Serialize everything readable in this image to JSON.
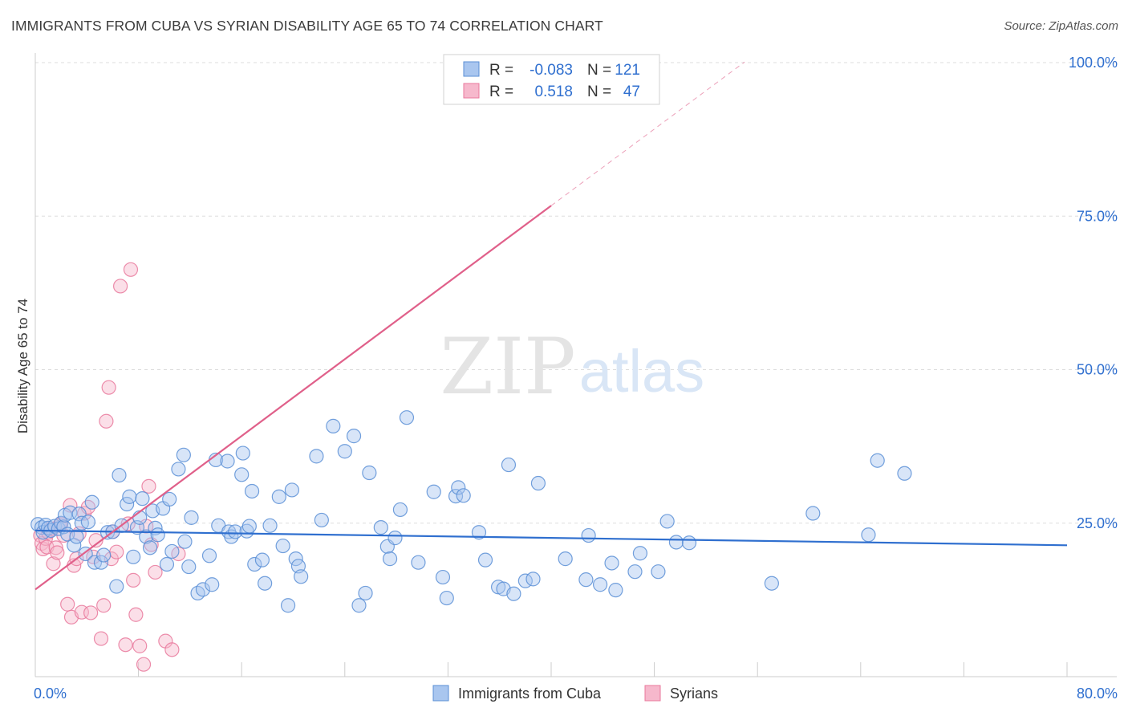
{
  "header": {
    "title": "IMMIGRANTS FROM CUBA VS SYRIAN DISABILITY AGE 65 TO 74 CORRELATION CHART",
    "source": "Source: ZipAtlas.com"
  },
  "watermark": {
    "zip": "ZIP",
    "atlas": "atlas"
  },
  "legend_top": {
    "rows": [
      {
        "r_label": "R =",
        "r_value": "-0.083",
        "n_label": "N =",
        "n_value": "121"
      },
      {
        "r_label": "R =",
        "r_value": "0.518",
        "n_label": "N =",
        "n_value": "47"
      }
    ]
  },
  "legend_bottom": {
    "items": [
      "Immigrants from Cuba",
      "Syrians"
    ]
  },
  "colors": {
    "cuba_fill": "#a9c6ef",
    "cuba_stroke": "#5a8fd6",
    "cuba_line": "#2f6fcf",
    "syr_fill": "#f6b8cc",
    "syr_stroke": "#e9799c",
    "syr_line": "#e0608a",
    "value_text": "#2f6fcf",
    "grid": "#dddddd"
  },
  "chart_data": {
    "type": "scatter",
    "xlabel": "",
    "ylabel": "Disability Age 65 to 74",
    "xlim": [
      0,
      80
    ],
    "ylim": [
      0,
      100
    ],
    "x_tick_labels": [
      {
        "value": 0,
        "label": "0.0%"
      },
      {
        "value": 80,
        "label": "80.0%"
      }
    ],
    "y_tick_labels": [
      {
        "value": 25,
        "label": "25.0%"
      },
      {
        "value": 50,
        "label": "50.0%"
      },
      {
        "value": 75,
        "label": "75.0%"
      },
      {
        "value": 100,
        "label": "100.0%"
      }
    ],
    "series": [
      {
        "name": "Immigrants from Cuba",
        "r": -0.083,
        "n": 121,
        "trend": {
          "x0": 0,
          "y0": 23.8,
          "x1": 80,
          "y1": 21.4
        },
        "points": [
          [
            0.2,
            24.8
          ],
          [
            0.5,
            24.3
          ],
          [
            0.6,
            23.5
          ],
          [
            0.8,
            24.7
          ],
          [
            1.0,
            24.2
          ],
          [
            1.2,
            23.8
          ],
          [
            1.5,
            24.5
          ],
          [
            1.8,
            24.1
          ],
          [
            2.0,
            25.0
          ],
          [
            2.2,
            24.4
          ],
          [
            2.3,
            26.3
          ],
          [
            2.5,
            23.2
          ],
          [
            2.7,
            26.7
          ],
          [
            3.0,
            21.4
          ],
          [
            3.2,
            22.8
          ],
          [
            3.4,
            26.5
          ],
          [
            3.6,
            25.0
          ],
          [
            3.9,
            20.0
          ],
          [
            4.1,
            25.2
          ],
          [
            4.4,
            28.4
          ],
          [
            4.6,
            18.6
          ],
          [
            5.1,
            18.6
          ],
          [
            5.3,
            19.8
          ],
          [
            5.6,
            23.5
          ],
          [
            6.0,
            23.6
          ],
          [
            6.3,
            14.7
          ],
          [
            6.5,
            32.8
          ],
          [
            6.7,
            24.6
          ],
          [
            7.1,
            28.1
          ],
          [
            7.3,
            29.3
          ],
          [
            7.6,
            19.5
          ],
          [
            7.9,
            24.3
          ],
          [
            8.1,
            25.9
          ],
          [
            8.3,
            29.0
          ],
          [
            8.6,
            22.8
          ],
          [
            8.9,
            21.0
          ],
          [
            9.1,
            27.0
          ],
          [
            9.3,
            24.2
          ],
          [
            9.5,
            23.1
          ],
          [
            9.9,
            27.4
          ],
          [
            10.2,
            18.3
          ],
          [
            10.4,
            28.9
          ],
          [
            10.6,
            20.4
          ],
          [
            11.1,
            33.8
          ],
          [
            11.5,
            36.1
          ],
          [
            11.6,
            22.0
          ],
          [
            11.9,
            17.9
          ],
          [
            12.1,
            25.9
          ],
          [
            12.6,
            13.6
          ],
          [
            13.0,
            14.2
          ],
          [
            13.5,
            19.7
          ],
          [
            13.7,
            15.0
          ],
          [
            14.0,
            35.3
          ],
          [
            14.2,
            24.6
          ],
          [
            14.9,
            35.1
          ],
          [
            15.0,
            23.6
          ],
          [
            15.2,
            22.8
          ],
          [
            15.5,
            23.6
          ],
          [
            16.0,
            32.9
          ],
          [
            16.1,
            36.4
          ],
          [
            16.4,
            23.7
          ],
          [
            16.6,
            24.5
          ],
          [
            16.8,
            30.2
          ],
          [
            17.0,
            18.3
          ],
          [
            17.6,
            19.0
          ],
          [
            17.8,
            15.2
          ],
          [
            18.2,
            24.6
          ],
          [
            18.9,
            29.3
          ],
          [
            19.2,
            21.3
          ],
          [
            19.6,
            11.6
          ],
          [
            19.9,
            30.4
          ],
          [
            20.2,
            19.2
          ],
          [
            20.4,
            18.0
          ],
          [
            20.6,
            16.3
          ],
          [
            21.8,
            35.9
          ],
          [
            22.2,
            25.5
          ],
          [
            23.1,
            40.8
          ],
          [
            24.0,
            36.7
          ],
          [
            24.7,
            39.2
          ],
          [
            25.1,
            11.6
          ],
          [
            25.6,
            13.6
          ],
          [
            25.9,
            33.2
          ],
          [
            26.8,
            24.3
          ],
          [
            27.3,
            21.2
          ],
          [
            27.5,
            19.2
          ],
          [
            27.9,
            22.6
          ],
          [
            28.3,
            27.2
          ],
          [
            28.8,
            42.2
          ],
          [
            29.7,
            18.6
          ],
          [
            30.9,
            30.1
          ],
          [
            31.6,
            16.2
          ],
          [
            31.9,
            12.8
          ],
          [
            32.6,
            29.4
          ],
          [
            32.8,
            30.8
          ],
          [
            33.2,
            29.5
          ],
          [
            34.4,
            23.5
          ],
          [
            34.9,
            19.0
          ],
          [
            35.9,
            14.6
          ],
          [
            36.3,
            14.3
          ],
          [
            36.7,
            34.5
          ],
          [
            37.1,
            13.5
          ],
          [
            38.0,
            15.6
          ],
          [
            38.6,
            15.9
          ],
          [
            39.0,
            31.5
          ],
          [
            41.1,
            19.2
          ],
          [
            42.7,
            15.8
          ],
          [
            42.9,
            23.0
          ],
          [
            43.8,
            15.0
          ],
          [
            44.7,
            18.5
          ],
          [
            45.0,
            14.1
          ],
          [
            46.5,
            17.1
          ],
          [
            46.9,
            20.1
          ],
          [
            48.3,
            17.1
          ],
          [
            49.0,
            25.3
          ],
          [
            49.7,
            21.9
          ],
          [
            50.7,
            21.8
          ],
          [
            57.1,
            15.2
          ],
          [
            60.3,
            26.6
          ],
          [
            64.6,
            23.1
          ],
          [
            65.3,
            35.2
          ],
          [
            67.4,
            33.1
          ]
        ]
      },
      {
        "name": "Syrians",
        "r": 0.518,
        "n": 47,
        "trend": {
          "x0": 0,
          "y0": 14.2,
          "x1": 40,
          "y1": 76.7,
          "dash_to_x": 55,
          "dash_to_y": 100.1
        },
        "points": [
          [
            0.4,
            23.0
          ],
          [
            0.5,
            21.7
          ],
          [
            0.6,
            20.8
          ],
          [
            0.8,
            22.5
          ],
          [
            0.9,
            21.1
          ],
          [
            1.0,
            23.5
          ],
          [
            1.2,
            24.1
          ],
          [
            1.4,
            18.4
          ],
          [
            1.6,
            21.0
          ],
          [
            1.7,
            20.2
          ],
          [
            1.9,
            24.7
          ],
          [
            2.0,
            24.9
          ],
          [
            2.2,
            23.0
          ],
          [
            2.5,
            11.8
          ],
          [
            2.7,
            27.9
          ],
          [
            2.8,
            9.7
          ],
          [
            3.0,
            18.1
          ],
          [
            3.2,
            19.2
          ],
          [
            3.4,
            23.3
          ],
          [
            3.6,
            10.5
          ],
          [
            3.8,
            26.6
          ],
          [
            4.1,
            27.6
          ],
          [
            4.3,
            10.4
          ],
          [
            4.5,
            19.5
          ],
          [
            4.7,
            22.2
          ],
          [
            5.1,
            6.2
          ],
          [
            5.3,
            11.6
          ],
          [
            5.5,
            41.6
          ],
          [
            5.7,
            47.1
          ],
          [
            5.9,
            19.2
          ],
          [
            6.0,
            23.6
          ],
          [
            6.3,
            20.3
          ],
          [
            6.6,
            63.6
          ],
          [
            7.0,
            5.2
          ],
          [
            7.2,
            24.9
          ],
          [
            7.4,
            66.3
          ],
          [
            7.6,
            15.7
          ],
          [
            7.8,
            10.1
          ],
          [
            8.1,
            5.0
          ],
          [
            8.4,
            2.0
          ],
          [
            8.6,
            24.5
          ],
          [
            8.8,
            31.0
          ],
          [
            9.0,
            21.5
          ],
          [
            9.3,
            17.0
          ],
          [
            10.1,
            5.8
          ],
          [
            10.6,
            4.4
          ],
          [
            11.1,
            20.0
          ]
        ]
      }
    ]
  }
}
